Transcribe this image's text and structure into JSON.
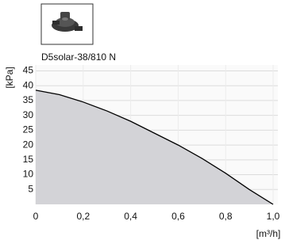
{
  "chart_data": {
    "type": "area",
    "title": "D5solar-38/810 N",
    "ylabel": "[kPa]",
    "xlabel": "[m³/h]",
    "x": [
      0,
      0.1,
      0.2,
      0.3,
      0.4,
      0.5,
      0.6,
      0.7,
      0.8,
      0.9,
      1.0
    ],
    "values": [
      38.5,
      37,
      34.5,
      31.5,
      28,
      24,
      20,
      15.5,
      10.5,
      5,
      0
    ],
    "color": "#000000",
    "fill_color": "#d3d3d7",
    "xlim": [
      0,
      1.02
    ],
    "ylim": [
      0,
      47
    ],
    "xticks": [
      0,
      {
        "value": 0.2,
        "label": "0,2"
      },
      {
        "value": 0.4,
        "label": "0,4"
      },
      {
        "value": 0.6,
        "label": "0,6"
      },
      {
        "value": 0.8,
        "label": "0,8"
      },
      {
        "value": 1.0,
        "label": "1,0"
      }
    ],
    "yticks": [
      5,
      10,
      15,
      20,
      25,
      30,
      35,
      40,
      45
    ],
    "grid": true
  }
}
